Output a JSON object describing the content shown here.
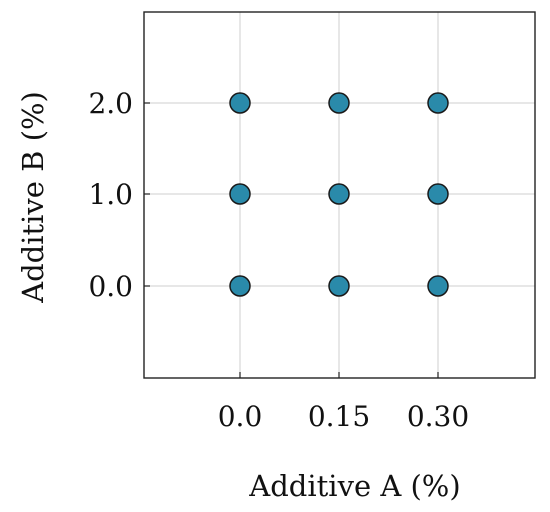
{
  "chart_data": {
    "type": "scatter",
    "title": "",
    "xlabel": "Additive A (%)",
    "ylabel": "Additive B (%)",
    "x_categories": [
      "0.0",
      "0.15",
      "0.30"
    ],
    "y_categories": [
      "0.0",
      "1.0",
      "2.0"
    ],
    "grid": true,
    "marker_color": "#2a8aaa",
    "marker_edge_color": "#1a1a1a",
    "points": [
      {
        "x": "0.0",
        "y": "0.0"
      },
      {
        "x": "0.15",
        "y": "0.0"
      },
      {
        "x": "0.30",
        "y": "0.0"
      },
      {
        "x": "0.0",
        "y": "1.0"
      },
      {
        "x": "0.15",
        "y": "1.0"
      },
      {
        "x": "0.30",
        "y": "1.0"
      },
      {
        "x": "0.0",
        "y": "2.0"
      },
      {
        "x": "0.15",
        "y": "2.0"
      },
      {
        "x": "0.30",
        "y": "2.0"
      }
    ]
  }
}
